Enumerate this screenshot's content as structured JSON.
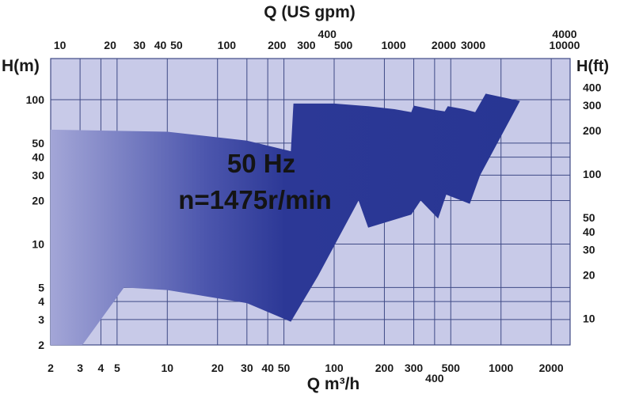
{
  "chart_data": {
    "type": "area",
    "title_top": "Q (US gpm)",
    "xlabel": "Q m³/h",
    "ylabel_left": "H(m)",
    "ylabel_right": "H(ft)",
    "x_scale": "log",
    "y_scale": "log",
    "xlim": [
      2,
      2400
    ],
    "ylim": [
      2,
      140
    ],
    "grid": true,
    "x_ticks_bottom": [
      {
        "value": 2,
        "label": "2"
      },
      {
        "value": 3,
        "label": "3"
      },
      {
        "value": 4,
        "label": "4"
      },
      {
        "value": 5,
        "label": "5"
      },
      {
        "value": 10,
        "label": "10"
      },
      {
        "value": 20,
        "label": "20"
      },
      {
        "value": 30,
        "label": "30"
      },
      {
        "value": 40,
        "label": "40"
      },
      {
        "value": 50,
        "label": "50"
      },
      {
        "value": 100,
        "label": "100"
      },
      {
        "value": 200,
        "label": "200"
      },
      {
        "value": 300,
        "label": "300"
      },
      {
        "value": 400,
        "label": "400"
      },
      {
        "value": 500,
        "label": "500"
      },
      {
        "value": 1000,
        "label": "1000"
      },
      {
        "value": 2000,
        "label": "2000"
      }
    ],
    "x_ticks_top": [
      {
        "value": 10,
        "label": "10"
      },
      {
        "value": 20,
        "label": "20"
      },
      {
        "value": 30,
        "label": "30"
      },
      {
        "value": 40,
        "label": "40"
      },
      {
        "value": 50,
        "label": "50"
      },
      {
        "value": 100,
        "label": "100"
      },
      {
        "value": 200,
        "label": "200"
      },
      {
        "value": 300,
        "label": "300"
      },
      {
        "value": 400,
        "label": "400"
      },
      {
        "value": 500,
        "label": "500"
      },
      {
        "value": 1000,
        "label": "1000"
      },
      {
        "value": 2000,
        "label": "2000"
      },
      {
        "value": 3000,
        "label": "3000"
      },
      {
        "value": 4000,
        "label": "4000"
      },
      {
        "value": 10000,
        "label": "10000"
      }
    ],
    "y_ticks_left": [
      {
        "value": 2,
        "label": "2"
      },
      {
        "value": 3,
        "label": "3"
      },
      {
        "value": 4,
        "label": "4"
      },
      {
        "value": 5,
        "label": "5"
      },
      {
        "value": 10,
        "label": "10"
      },
      {
        "value": 20,
        "label": "20"
      },
      {
        "value": 30,
        "label": "30"
      },
      {
        "value": 40,
        "label": "40"
      },
      {
        "value": 50,
        "label": "50"
      },
      {
        "value": 100,
        "label": "100"
      }
    ],
    "y_ticks_right": [
      {
        "value": 10,
        "label": "10"
      },
      {
        "value": 20,
        "label": "20"
      },
      {
        "value": 30,
        "label": "30"
      },
      {
        "value": 40,
        "label": "40"
      },
      {
        "value": 50,
        "label": "50"
      },
      {
        "value": 100,
        "label": "100"
      },
      {
        "value": 200,
        "label": "200"
      },
      {
        "value": 300,
        "label": "300"
      },
      {
        "value": 400,
        "label": "400"
      }
    ],
    "grid_x": [
      2,
      3,
      4,
      5,
      10,
      20,
      30,
      40,
      50,
      100,
      200,
      300,
      400,
      500,
      1000,
      2000
    ],
    "grid_y": [
      2,
      3,
      4,
      5,
      10,
      20,
      30,
      40,
      50,
      100
    ],
    "annotations": [
      "50 Hz",
      "n=1475r/min"
    ],
    "coverage_region": [
      [
        2,
        62
      ],
      [
        10,
        60
      ],
      [
        30,
        52
      ],
      [
        55,
        44
      ],
      [
        57,
        94
      ],
      [
        100,
        94
      ],
      [
        160,
        90
      ],
      [
        230,
        86
      ],
      [
        290,
        82
      ],
      [
        300,
        91
      ],
      [
        400,
        85
      ],
      [
        460,
        83
      ],
      [
        480,
        90
      ],
      [
        600,
        86
      ],
      [
        700,
        82
      ],
      [
        810,
        110
      ],
      [
        1300,
        98
      ],
      [
        750,
        30
      ],
      [
        650,
        19
      ],
      [
        470,
        22
      ],
      [
        420,
        15
      ],
      [
        330,
        20
      ],
      [
        290,
        16
      ],
      [
        160,
        13
      ],
      [
        140,
        20
      ],
      [
        80,
        6
      ],
      [
        55,
        2.9
      ],
      [
        30,
        3.9
      ],
      [
        10,
        4.8
      ],
      [
        5.5,
        5
      ],
      [
        3.1,
        2
      ],
      [
        2,
        2
      ]
    ],
    "colors": {
      "background": "#c8cae8",
      "grid": "#3f4a86",
      "fill_dark": "#283693",
      "fill_light": "#a7a9d8",
      "text": "#1a1a1a"
    }
  }
}
